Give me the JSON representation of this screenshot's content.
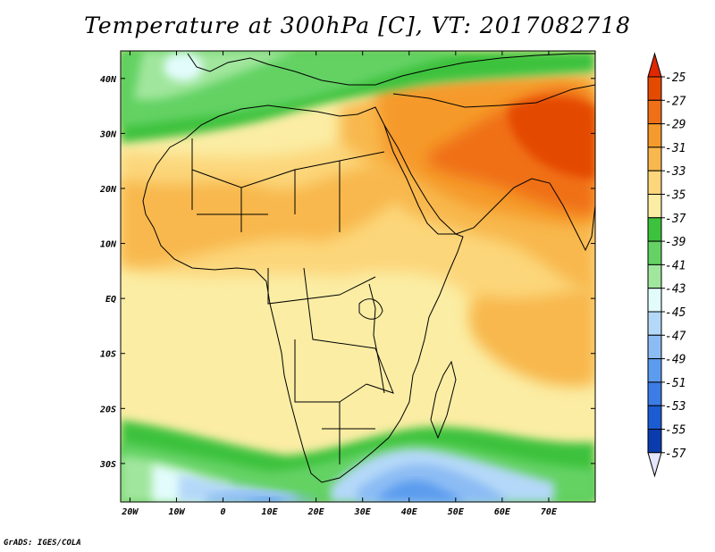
{
  "title": "Temperature at 300hPa [C], VT: 2017082718",
  "credit": "GrADS: IGES/COLA",
  "map": {
    "lon_range": [
      -22,
      80
    ],
    "lat_range": [
      -37,
      45
    ],
    "x_ticks": [
      {
        "value": -20,
        "label": "20W"
      },
      {
        "value": -10,
        "label": "10W"
      },
      {
        "value": 0,
        "label": "0"
      },
      {
        "value": 10,
        "label": "10E"
      },
      {
        "value": 20,
        "label": "20E"
      },
      {
        "value": 30,
        "label": "30E"
      },
      {
        "value": 40,
        "label": "40E"
      },
      {
        "value": 50,
        "label": "50E"
      },
      {
        "value": 60,
        "label": "60E"
      },
      {
        "value": 70,
        "label": "70E"
      }
    ],
    "y_ticks": [
      {
        "value": 40,
        "label": "40N"
      },
      {
        "value": 30,
        "label": "30N"
      },
      {
        "value": 20,
        "label": "20N"
      },
      {
        "value": 10,
        "label": "10N"
      },
      {
        "value": 0,
        "label": "EQ"
      },
      {
        "value": -10,
        "label": "10S"
      },
      {
        "value": -20,
        "label": "20S"
      },
      {
        "value": -30,
        "label": "30S"
      }
    ]
  },
  "colorbar": {
    "labels": [
      "-25",
      "-27",
      "-29",
      "-31",
      "-33",
      "-35",
      "-37",
      "-39",
      "-41",
      "-43",
      "-45",
      "-47",
      "-49",
      "-51",
      "-53",
      "-55",
      "-57"
    ],
    "colors": [
      "#e44a00",
      "#f07018",
      "#f59a2c",
      "#f8b84e",
      "#fcd67a",
      "#fbeda4",
      "#3cc23c",
      "#64d264",
      "#a0e69c",
      "#e2fcfc",
      "#b4d8f8",
      "#8cbcf4",
      "#5c9cee",
      "#3c7ce6",
      "#1c5cd2",
      "#0a3cae",
      "#0a1478"
    ],
    "top_arrow_color": "#e02800",
    "bottom_arrow_color": "#e6e6fc"
  }
}
